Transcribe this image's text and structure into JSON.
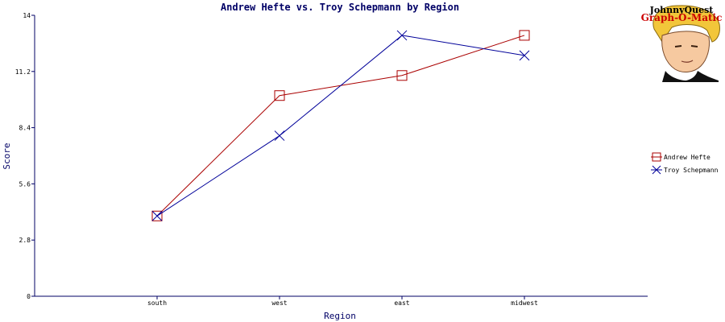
{
  "chart_data": {
    "type": "line",
    "title": "Andrew Hefte vs. Troy Schepmann by Region",
    "xlabel": "Region",
    "ylabel": "Score",
    "categories": [
      "south",
      "west",
      "east",
      "midwest"
    ],
    "ylim": [
      0,
      14
    ],
    "yticks": [
      "0",
      "2.8",
      "5.6",
      "8.4",
      "11.2",
      "14"
    ],
    "grid": false,
    "legend_position": "right",
    "series": [
      {
        "name": "Andrew Hefte",
        "values": [
          4,
          10,
          11,
          13
        ],
        "color": "#aa0000",
        "marker": "square"
      },
      {
        "name": "Troy Schepmann",
        "values": [
          4,
          8,
          13,
          12
        ],
        "color": "#000099",
        "marker": "x"
      }
    ]
  },
  "branding": {
    "line1": "JohnnyQuest",
    "line2": "Graph-O-Matic"
  },
  "colors": {
    "axis": "#000066",
    "background": "#ffffff"
  }
}
